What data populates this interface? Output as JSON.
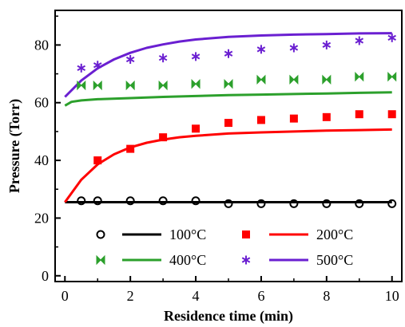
{
  "chart_data": {
    "type": "scatter",
    "xlabel": "Residence time (min)",
    "ylabel": "Pressure (Torr)",
    "xlim": [
      -0.3,
      10.3
    ],
    "ylim": [
      -2,
      92
    ],
    "xticks": [
      "0",
      "2",
      "4",
      "6",
      "8",
      "10"
    ],
    "yticks": [
      "0",
      "20",
      "40",
      "60",
      "80"
    ],
    "grid": false,
    "legend_position": "lower-center",
    "series": [
      {
        "name": "100°C",
        "color": "#000000",
        "marker": "open-circle",
        "points": {
          "x": [
            0.5,
            1,
            2,
            3,
            4,
            5,
            6,
            7,
            8,
            9,
            10
          ],
          "y": [
            26,
            26,
            26,
            26,
            26,
            25,
            25,
            25,
            25,
            25,
            25
          ]
        },
        "model": {
          "x": [
            0,
            10
          ],
          "y": [
            25.5,
            25.5
          ]
        }
      },
      {
        "name": "200°C",
        "color": "#ff0000",
        "marker": "filled-square",
        "points": {
          "x": [
            1,
            2,
            3,
            4,
            5,
            6,
            7,
            8,
            9,
            10
          ],
          "y": [
            40,
            44,
            48,
            51,
            53,
            54,
            54.5,
            55,
            56,
            56
          ]
        },
        "model": {
          "x": [
            0,
            0.5,
            1,
            1.5,
            2,
            2.5,
            3,
            3.5,
            4,
            5,
            6,
            7,
            8,
            9,
            10
          ],
          "y": [
            25.5,
            33.3,
            38.6,
            42.1,
            44.5,
            46.1,
            47.2,
            48.0,
            48.5,
            49.3,
            49.7,
            50.0,
            50.3,
            50.5,
            50.7
          ]
        }
      },
      {
        "name": "400°C",
        "color": "#2ca02c",
        "marker": "bowtie",
        "points": {
          "x": [
            0.5,
            1,
            2,
            3,
            4,
            5,
            6,
            7,
            8,
            9,
            10
          ],
          "y": [
            66,
            66,
            66,
            66,
            66.5,
            66.5,
            68,
            68,
            68,
            69,
            69
          ]
        },
        "model": {
          "x": [
            0,
            0.2,
            0.5,
            1,
            2,
            3,
            4,
            5,
            6,
            7,
            8,
            9,
            10
          ],
          "y": [
            59,
            60.3,
            60.8,
            61.2,
            61.6,
            62.0,
            62.3,
            62.6,
            62.8,
            63.0,
            63.2,
            63.4,
            63.6
          ]
        }
      },
      {
        "name": "500°C",
        "color": "#6a1fd1",
        "marker": "asterisk",
        "points": {
          "x": [
            0.5,
            1,
            2,
            3,
            4,
            5,
            6,
            7,
            8,
            9,
            10
          ],
          "y": [
            72,
            73,
            75,
            75.5,
            76,
            77,
            78.5,
            79,
            80,
            81.5,
            82.5
          ]
        },
        "model": {
          "x": [
            0,
            0.5,
            1,
            1.5,
            2,
            2.5,
            3,
            3.5,
            4,
            5,
            6,
            7,
            8,
            9,
            10
          ],
          "y": [
            62,
            67.7,
            71.9,
            75.0,
            77.3,
            79.0,
            80.2,
            81.2,
            81.9,
            82.8,
            83.3,
            83.6,
            83.8,
            84.0,
            84.1
          ]
        }
      }
    ]
  }
}
